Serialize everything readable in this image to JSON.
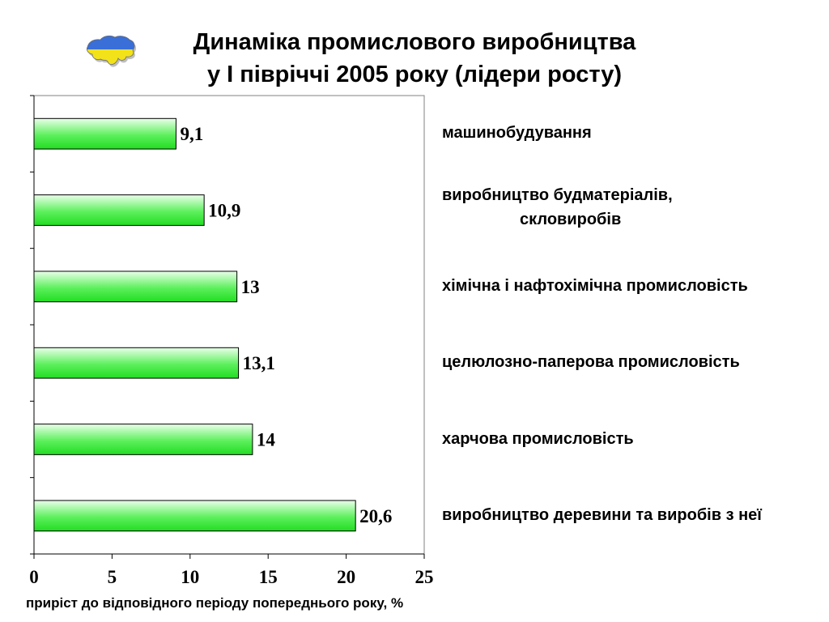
{
  "title": {
    "line1": "Динаміка промислового виробництва",
    "line2": "у І півріччі 2005 року (лідери росту)"
  },
  "logo_icon": "ukraine-map-icon",
  "colors": {
    "bar_fill_light": "#eaffea",
    "bar_fill_dark": "#22dd22",
    "bar_stroke": "#000000",
    "flag_blue": "#3a6fd8",
    "flag_yellow": "#f2e21a"
  },
  "chart_data": {
    "type": "bar",
    "orientation": "horizontal",
    "categories": [
      "машинобудування",
      "виробництво будматеріалів, скловиробів",
      "хімічна і нафтохімічна промисловість",
      "целюлозно-паперова промисловість",
      "харчова промисловість",
      "виробництво деревини та виробів з неї"
    ],
    "category_lines": [
      [
        "машинобудування"
      ],
      [
        "виробництво будматеріалів,",
        "скловиробів"
      ],
      [
        "хімічна і нафтохімічна промисловість"
      ],
      [
        "целюлозно-паперова промисловість"
      ],
      [
        "харчова промисловість"
      ],
      [
        "виробництво деревини та виробів з неї"
      ]
    ],
    "values": [
      9.1,
      10.9,
      13,
      13.1,
      14,
      20.6
    ],
    "value_labels": [
      "9,1",
      "10,9",
      "13",
      "13,1",
      "14",
      "20,6"
    ],
    "xlim": [
      0,
      25
    ],
    "x_ticks": [
      "0",
      "5",
      "10",
      "15",
      "20",
      "25"
    ],
    "xlabel": "приріст до відповідного періоду попереднього року, %",
    "ylabel": "",
    "grid": false,
    "legend": "none"
  }
}
